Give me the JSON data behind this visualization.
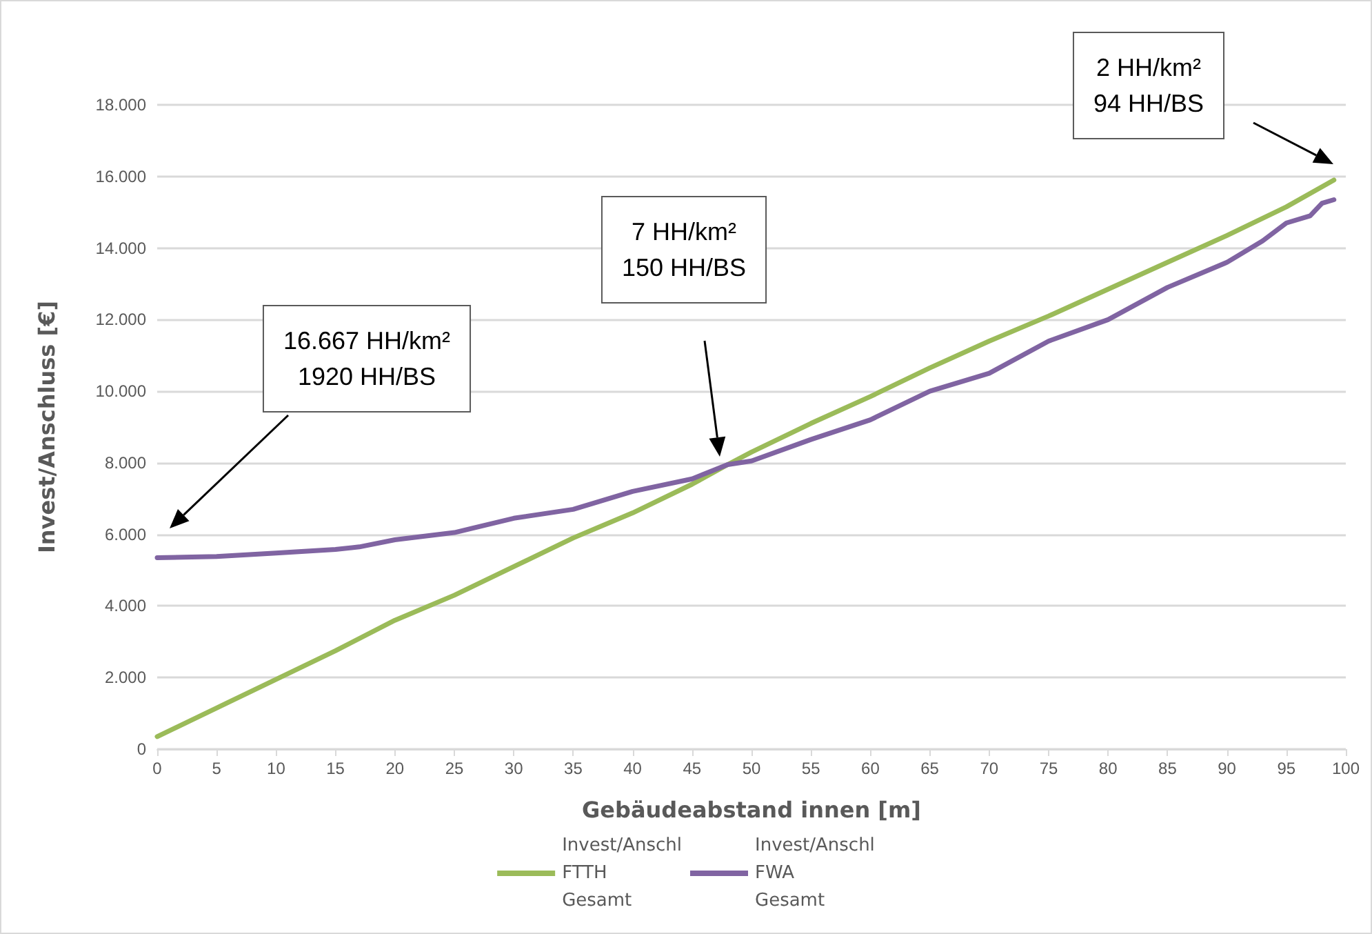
{
  "chart_data": {
    "type": "line",
    "xlabel": "Gebäudeabstand innen [m]",
    "ylabel": "Invest/Anschluss [€]",
    "xlim": [
      0,
      100
    ],
    "xticks": [
      0,
      5,
      10,
      15,
      20,
      25,
      30,
      35,
      40,
      45,
      50,
      55,
      60,
      65,
      70,
      75,
      80,
      85,
      90,
      95,
      100
    ],
    "ylim": [
      0,
      18000
    ],
    "yticks": [
      0,
      {
        "value": 2000,
        "label": "2.000"
      },
      {
        "value": 4000,
        "label": "4.000"
      },
      {
        "value": 6000,
        "label": "6.000"
      },
      {
        "value": 8000,
        "label": "8.000"
      },
      {
        "value": 10000,
        "label": "10.000"
      },
      {
        "value": 12000,
        "label": "12.000"
      },
      {
        "value": 14000,
        "label": "14.000"
      },
      {
        "value": 16000,
        "label": "16.000"
      },
      {
        "value": 18000,
        "label": "18.000"
      }
    ],
    "grid": "y",
    "legend": "bottom",
    "marker": "none",
    "line_style": "solid",
    "series": [
      {
        "name": "Invest/Anschl\nFTTH\nGesamt",
        "color": "#9bbb59",
        "x": [
          0,
          5,
          10,
          15,
          20,
          25,
          30,
          35,
          40,
          45,
          48,
          50,
          55,
          60,
          65,
          70,
          75,
          80,
          85,
          90,
          95,
          99
        ],
        "values": [
          350,
          1150,
          1950,
          2750,
          3600,
          4300,
          5100,
          5900,
          6600,
          7400,
          7950,
          8300,
          9100,
          9850,
          10650,
          11400,
          12100,
          12850,
          13600,
          14350,
          15150,
          15900
        ]
      },
      {
        "name": "Invest/Anschl\nFWA\nGesamt",
        "color": "#8064a2",
        "x": [
          0,
          5,
          10,
          15,
          17,
          20,
          25,
          30,
          35,
          40,
          45,
          48,
          50,
          55,
          60,
          65,
          70,
          75,
          80,
          85,
          90,
          93,
          95,
          97,
          98,
          99
        ],
        "values": [
          5350,
          5380,
          5480,
          5580,
          5650,
          5850,
          6050,
          6450,
          6700,
          7200,
          7550,
          7950,
          8050,
          8650,
          9200,
          10000,
          10500,
          11400,
          12000,
          12900,
          13600,
          14200,
          14700,
          14900,
          15250,
          15350
        ]
      }
    ],
    "annotations": [
      "16.667 HH/km²\n1920 HH/BS",
      "7 HH/km²\n150 HH/BS",
      "2 HH/km²\n94 HH/BS"
    ]
  }
}
